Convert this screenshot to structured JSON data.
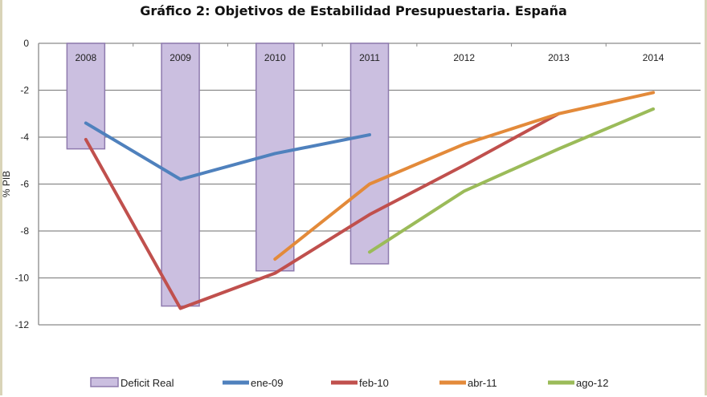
{
  "chart_data": {
    "type": "bar+line",
    "title": "Gráfico 2: Objetivos de Estabilidad Presupuestaria. España",
    "xlabel": "",
    "ylabel": "% PIB",
    "ylim": [
      -12,
      0
    ],
    "yticks": [
      0,
      -2,
      -4,
      -6,
      -8,
      -10,
      -12
    ],
    "grid": true,
    "legend_position": "bottom",
    "categories": [
      "2008",
      "2009",
      "2010",
      "2011",
      "2012",
      "2013",
      "2014"
    ],
    "bar_series": {
      "name": "Deficit Real",
      "color": "#cbbfe0",
      "values": [
        -4.5,
        -11.2,
        -9.7,
        -9.4,
        null,
        null,
        null
      ]
    },
    "series": [
      {
        "name": "ene-09",
        "color": "#4f81bd",
        "values": [
          -3.4,
          -5.8,
          -4.7,
          -3.9,
          null,
          null,
          null
        ]
      },
      {
        "name": "feb-10",
        "color": "#c0504d",
        "values": [
          -4.1,
          -11.3,
          -9.8,
          -7.3,
          -5.2,
          -3.0,
          null
        ]
      },
      {
        "name": "abr-11",
        "color": "#e38a3a",
        "values": [
          null,
          null,
          -9.2,
          -6.0,
          -4.3,
          -3.0,
          -2.1
        ]
      },
      {
        "name": "ago-12",
        "color": "#9bbb59",
        "values": [
          null,
          null,
          null,
          -8.9,
          -6.3,
          -4.5,
          -2.8
        ]
      }
    ]
  }
}
